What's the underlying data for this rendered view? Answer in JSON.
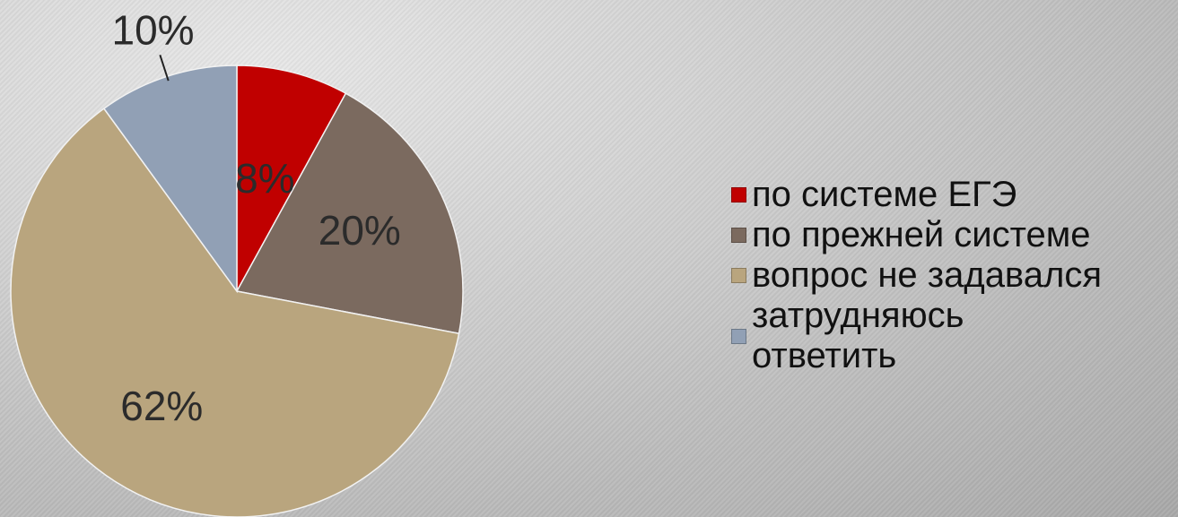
{
  "chart_data": {
    "type": "pie",
    "title": "",
    "categories": [
      "по системе ЕГЭ",
      "по прежней системе",
      "вопрос не задавался",
      "затрудняюсь\nответить"
    ],
    "values": [
      8,
      20,
      62,
      10
    ],
    "labels": [
      "8%",
      "20%",
      "62%",
      "10%"
    ],
    "colors": [
      "#c00000",
      "#7b6a5f",
      "#b9a57e",
      "#91a0b5"
    ],
    "legend_position": "right",
    "start_angle_deg": 0,
    "direction": "clockwise"
  }
}
